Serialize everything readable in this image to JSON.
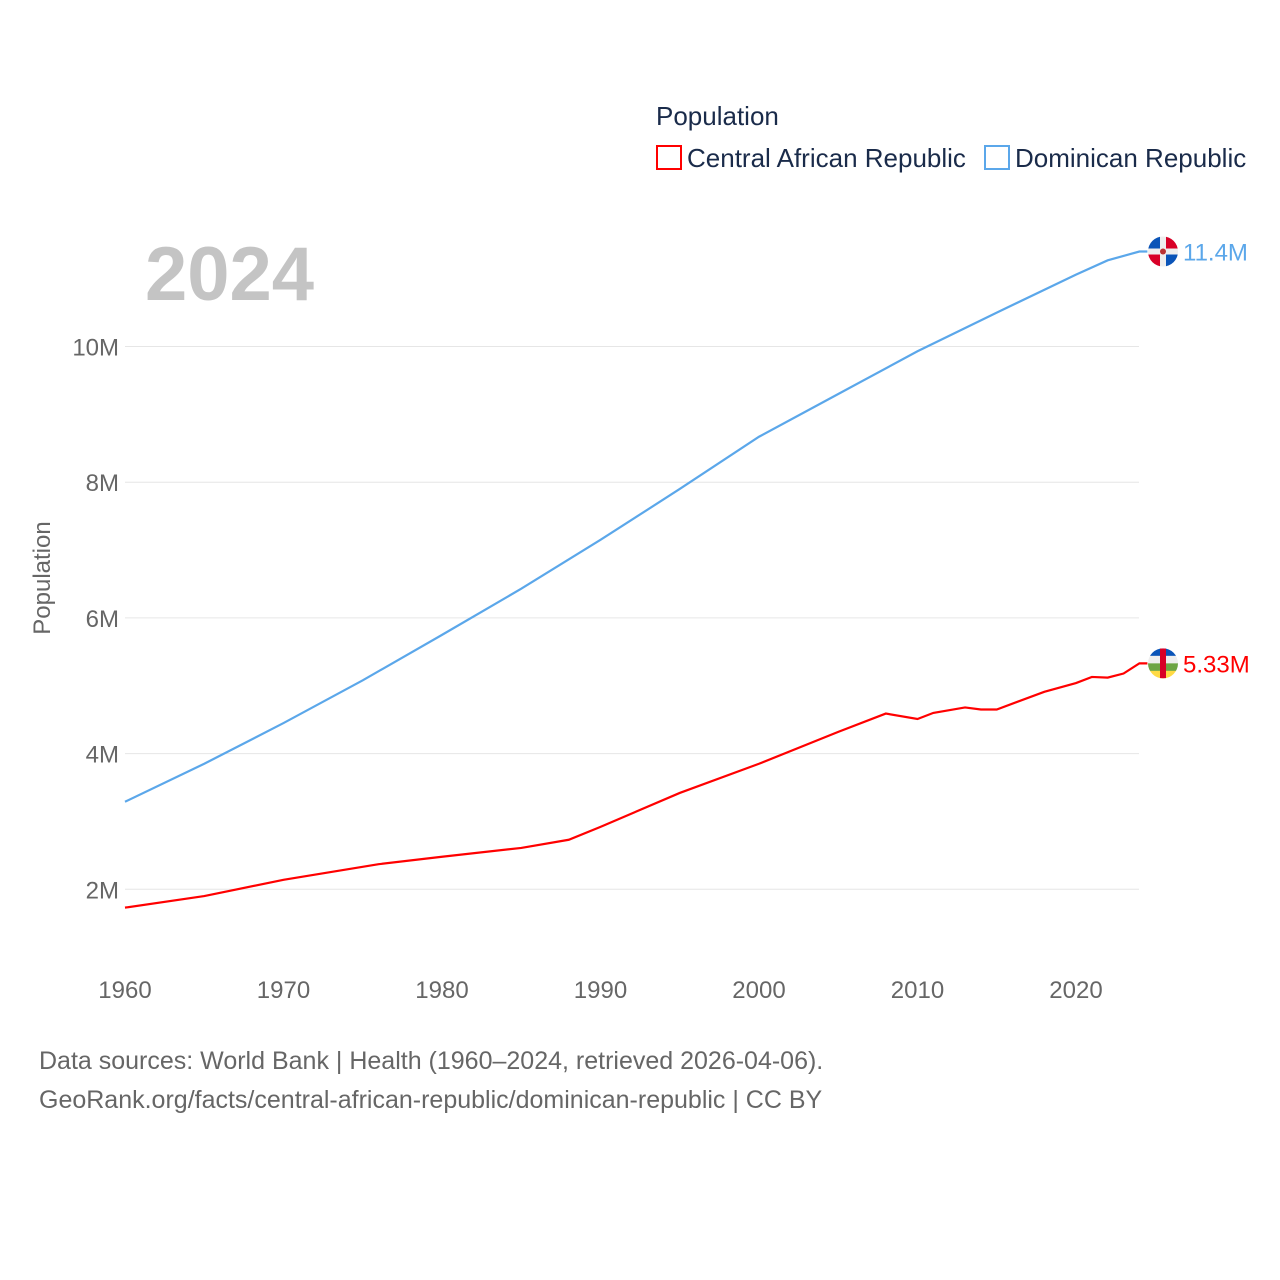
{
  "chart_data": {
    "type": "line",
    "title": "Population",
    "year_label": "2024",
    "ylabel": "Population",
    "xlabel": "",
    "xlim": [
      1960,
      2024
    ],
    "ylim": [
      0,
      12000000
    ],
    "grid": true,
    "legend_placement": "top-right",
    "x_ticks": [
      1960,
      1970,
      1980,
      1990,
      2000,
      2010,
      2020
    ],
    "x_tick_labels": [
      "1960",
      "1970",
      "1980",
      "1990",
      "2000",
      "2010",
      "2020"
    ],
    "y_ticks": [
      2000000,
      4000000,
      6000000,
      8000000,
      10000000
    ],
    "y_tick_labels": [
      "2M",
      "4M",
      "6M",
      "8M",
      "10M"
    ],
    "series": [
      {
        "name": "Central African Republic",
        "color": "#ff0000",
        "end_label": "5.33M",
        "flag": "central-african-republic-flag",
        "points": [
          [
            1960,
            1.73
          ],
          [
            1965,
            1.9
          ],
          [
            1970,
            2.14
          ],
          [
            1976,
            2.37
          ],
          [
            1980,
            2.48
          ],
          [
            1985,
            2.61
          ],
          [
            1988,
            2.73
          ],
          [
            1990,
            2.92
          ],
          [
            1995,
            3.42
          ],
          [
            2000,
            3.85
          ],
          [
            2005,
            4.32
          ],
          [
            2008,
            4.59
          ],
          [
            2010,
            4.51
          ],
          [
            2011,
            4.6
          ],
          [
            2013,
            4.68
          ],
          [
            2014,
            4.65
          ],
          [
            2015,
            4.65
          ],
          [
            2018,
            4.91
          ],
          [
            2020,
            5.04
          ],
          [
            2021,
            5.13
          ],
          [
            2022,
            5.12
          ],
          [
            2023,
            5.18
          ],
          [
            2024,
            5.33
          ]
        ]
      },
      {
        "name": "Dominican Republic",
        "color": "#5ba7ea",
        "end_label": "11.4M",
        "flag": "dominican-republic-flag",
        "points": [
          [
            1960,
            3.29
          ],
          [
            1965,
            3.85
          ],
          [
            1970,
            4.45
          ],
          [
            1975,
            5.08
          ],
          [
            1980,
            5.75
          ],
          [
            1985,
            6.43
          ],
          [
            1990,
            7.15
          ],
          [
            1995,
            7.9
          ],
          [
            2000,
            8.67
          ],
          [
            2005,
            9.3
          ],
          [
            2010,
            9.93
          ],
          [
            2015,
            10.5
          ],
          [
            2020,
            11.06
          ],
          [
            2022,
            11.27
          ],
          [
            2024,
            11.4
          ]
        ]
      }
    ]
  },
  "footer": {
    "line1": "Data sources: World Bank | Health (1960–2024, retrieved 2026-04-06).",
    "line2": "GeoRank.org/facts/central-african-republic/dominican-republic | CC BY"
  }
}
